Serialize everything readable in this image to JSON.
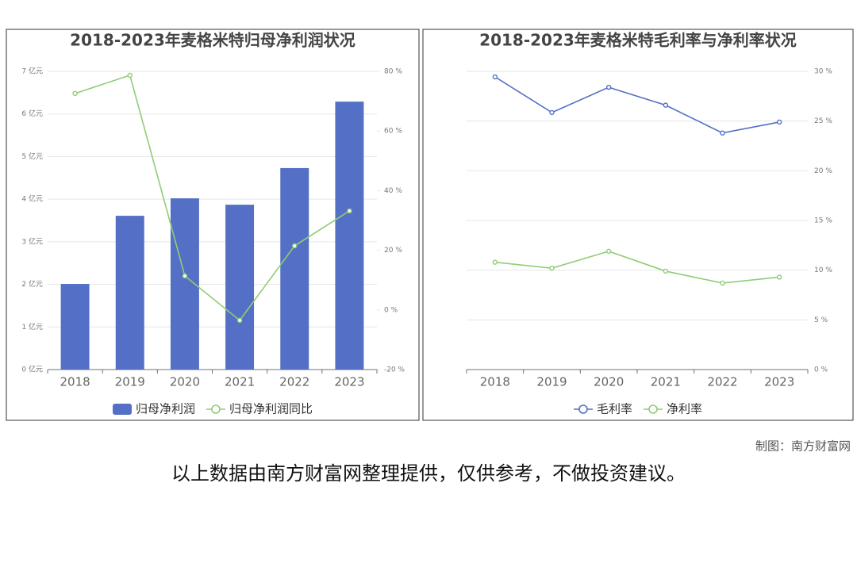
{
  "chart_data": [
    {
      "type": "bar",
      "title": "2018-2023年麦格米特归母净利润状况",
      "categories": [
        "2018",
        "2019",
        "2020",
        "2021",
        "2022",
        "2023"
      ],
      "series": [
        {
          "name": "归母净利润",
          "type": "bar",
          "color": "#5470c6",
          "values": [
            2.01,
            3.61,
            4.02,
            3.87,
            4.73,
            6.29
          ]
        },
        {
          "name": "归母净利润同比",
          "type": "line",
          "axis": "y2",
          "color": "#91cc75",
          "values": [
            72.6,
            78.7,
            11.4,
            -3.5,
            21.5,
            33.2
          ]
        }
      ],
      "ylim": [
        0,
        7
      ],
      "yticks": [
        {
          "value": 0,
          "label": "0 亿元"
        },
        {
          "value": 1,
          "label": "1 亿元"
        },
        {
          "value": 2,
          "label": "2 亿元"
        },
        {
          "value": 3,
          "label": "3 亿元"
        },
        {
          "value": 4,
          "label": "4 亿元"
        },
        {
          "value": 5,
          "label": "5 亿元"
        },
        {
          "value": 6,
          "label": "6 亿元"
        },
        {
          "value": 7,
          "label": "7 亿元"
        }
      ],
      "y2lim": [
        -20,
        80
      ],
      "y2ticks": [
        {
          "value": -20,
          "label": "-20 %"
        },
        {
          "value": 0,
          "label": "0 %"
        },
        {
          "value": 20,
          "label": "20 %"
        },
        {
          "value": 40,
          "label": "40 %"
        },
        {
          "value": 60,
          "label": "60 %"
        },
        {
          "value": 80,
          "label": "80 %"
        }
      ],
      "grid": true,
      "legend": "bottom"
    },
    {
      "type": "line",
      "title": "2018-2023年麦格米特毛利率与净利率状况",
      "categories": [
        "2018",
        "2019",
        "2020",
        "2021",
        "2022",
        "2023"
      ],
      "series": [
        {
          "name": "毛利率",
          "type": "line",
          "color": "#5470c6",
          "values": [
            29.45,
            25.86,
            28.4,
            26.6,
            23.8,
            24.9
          ]
        },
        {
          "name": "净利率",
          "type": "line",
          "color": "#91cc75",
          "values": [
            10.8,
            10.2,
            11.9,
            9.9,
            8.7,
            9.3
          ]
        }
      ],
      "ylim": [
        0,
        30
      ],
      "yticks": [
        {
          "value": 0,
          "label": "0 %"
        },
        {
          "value": 5,
          "label": "5 %"
        },
        {
          "value": 10,
          "label": "10 %"
        },
        {
          "value": 15,
          "label": "15 %"
        },
        {
          "value": 20,
          "label": "20 %"
        },
        {
          "value": 25,
          "label": "25 %"
        },
        {
          "value": 30,
          "label": "30 %"
        }
      ],
      "y_axis_side": "right",
      "grid": true,
      "legend": "bottom"
    }
  ],
  "credit": "制图：南方财富网",
  "note": "以上数据由南方财富网整理提供，仅供参考，不做投资建议。"
}
